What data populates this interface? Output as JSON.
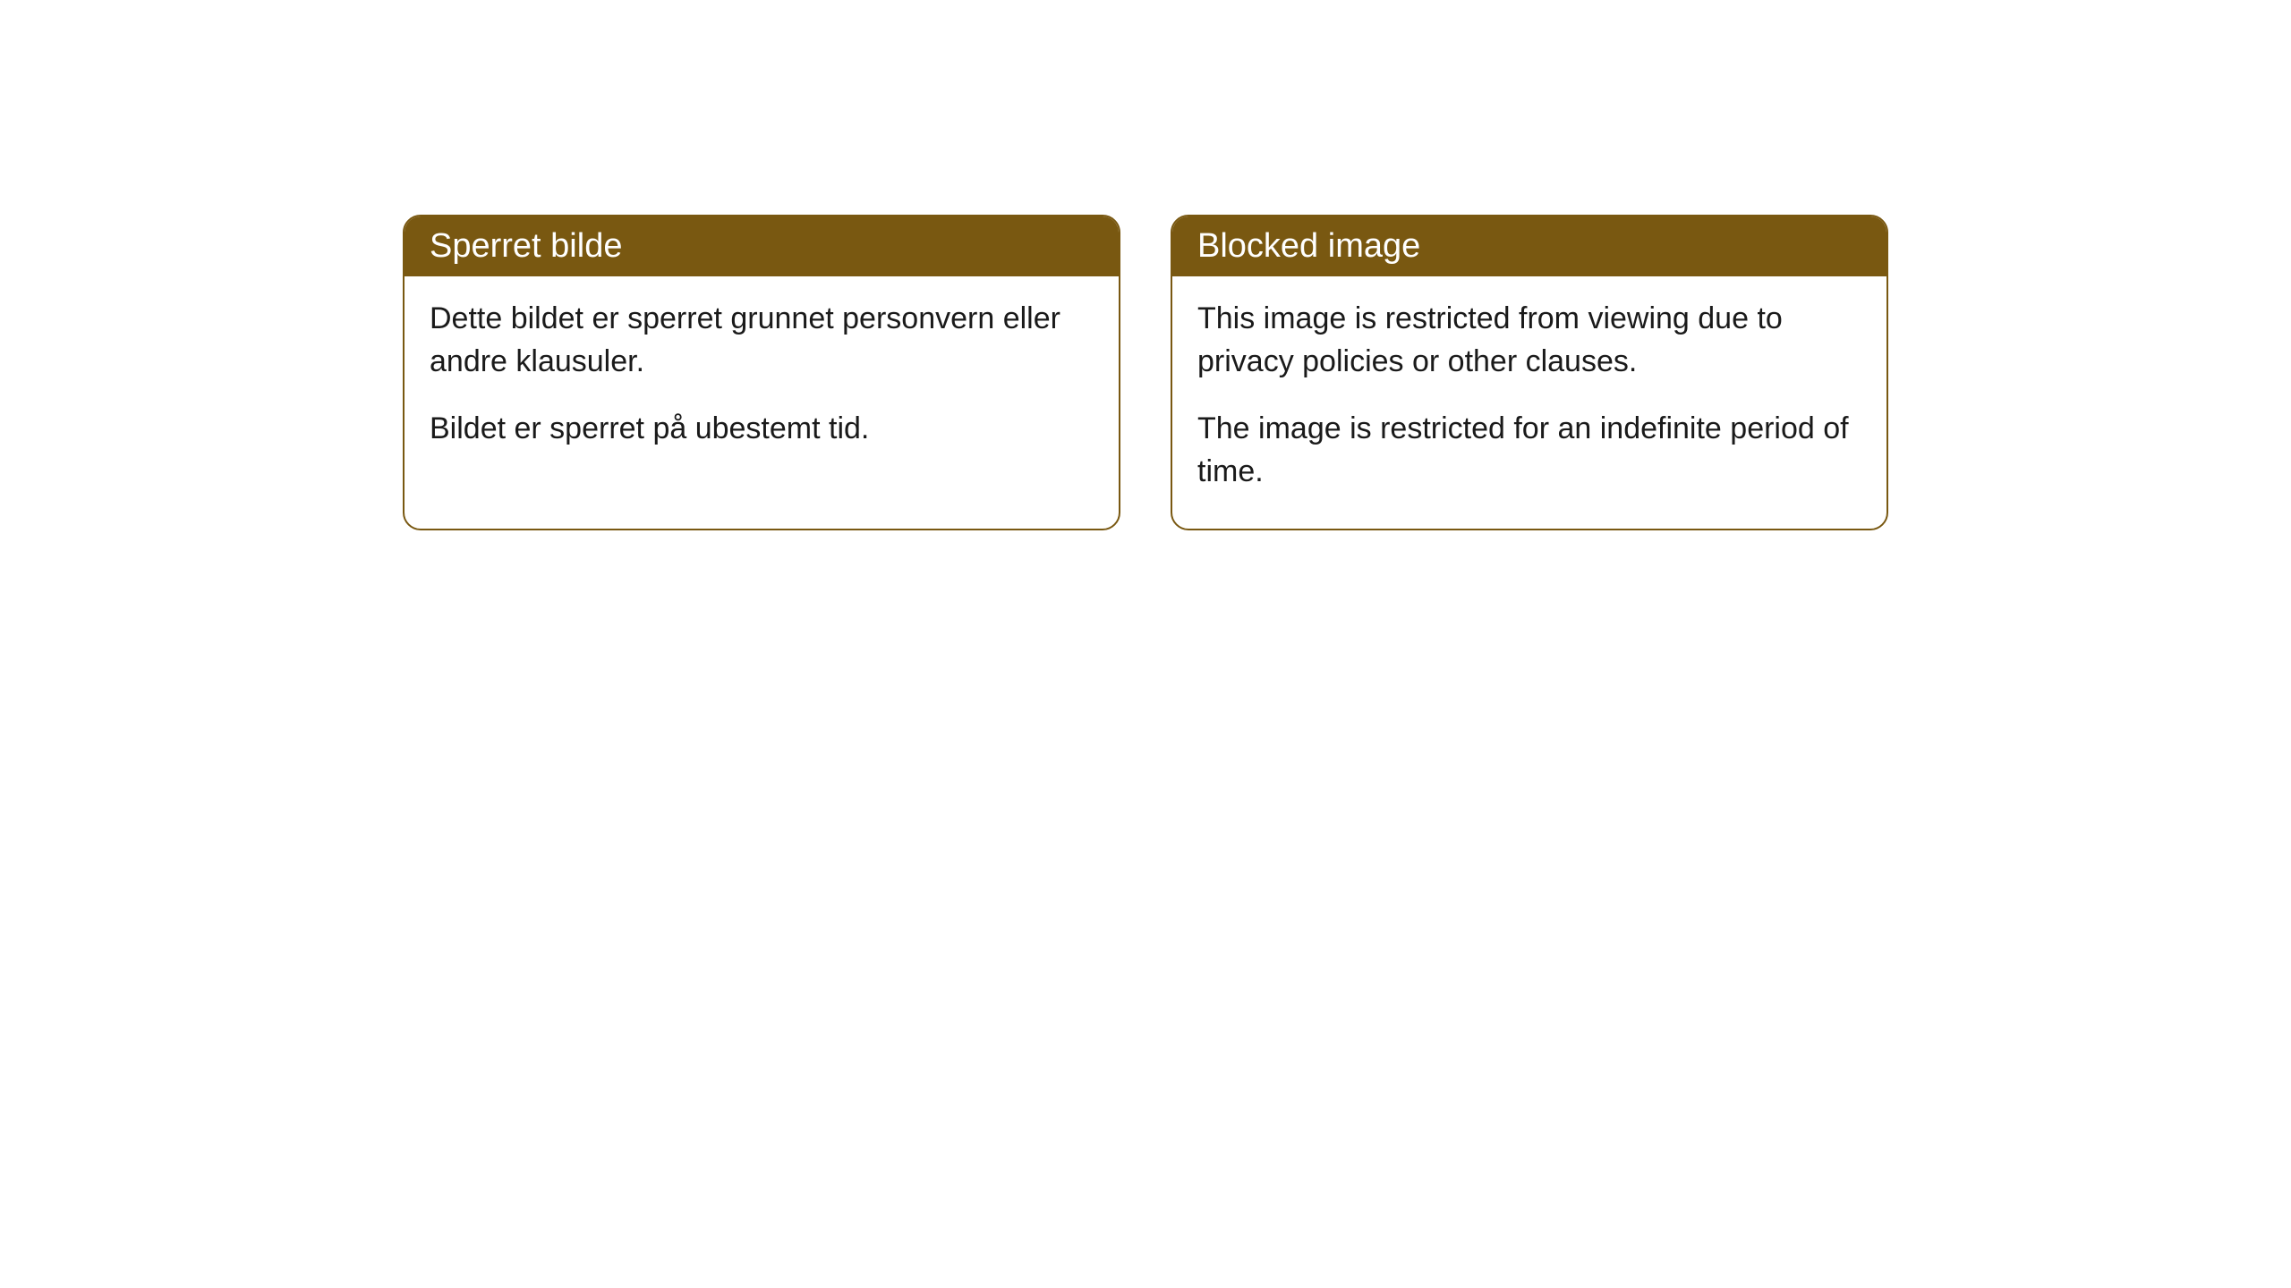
{
  "cards": {
    "norwegian": {
      "title": "Sperret bilde",
      "paragraph1": "Dette bildet er sperret grunnet personvern eller andre klausuler.",
      "paragraph2": "Bildet er sperret på ubestemt tid."
    },
    "english": {
      "title": "Blocked image",
      "paragraph1": "This image is restricted from viewing due to privacy policies or other clauses.",
      "paragraph2": "The image is restricted for an indefinite period of time."
    }
  },
  "styling": {
    "header_background": "#795811",
    "header_text_color": "#ffffff",
    "border_color": "#795811",
    "body_text_color": "#1a1a1a",
    "card_background": "#ffffff",
    "border_radius": 20,
    "title_fontsize": 38,
    "body_fontsize": 34
  }
}
